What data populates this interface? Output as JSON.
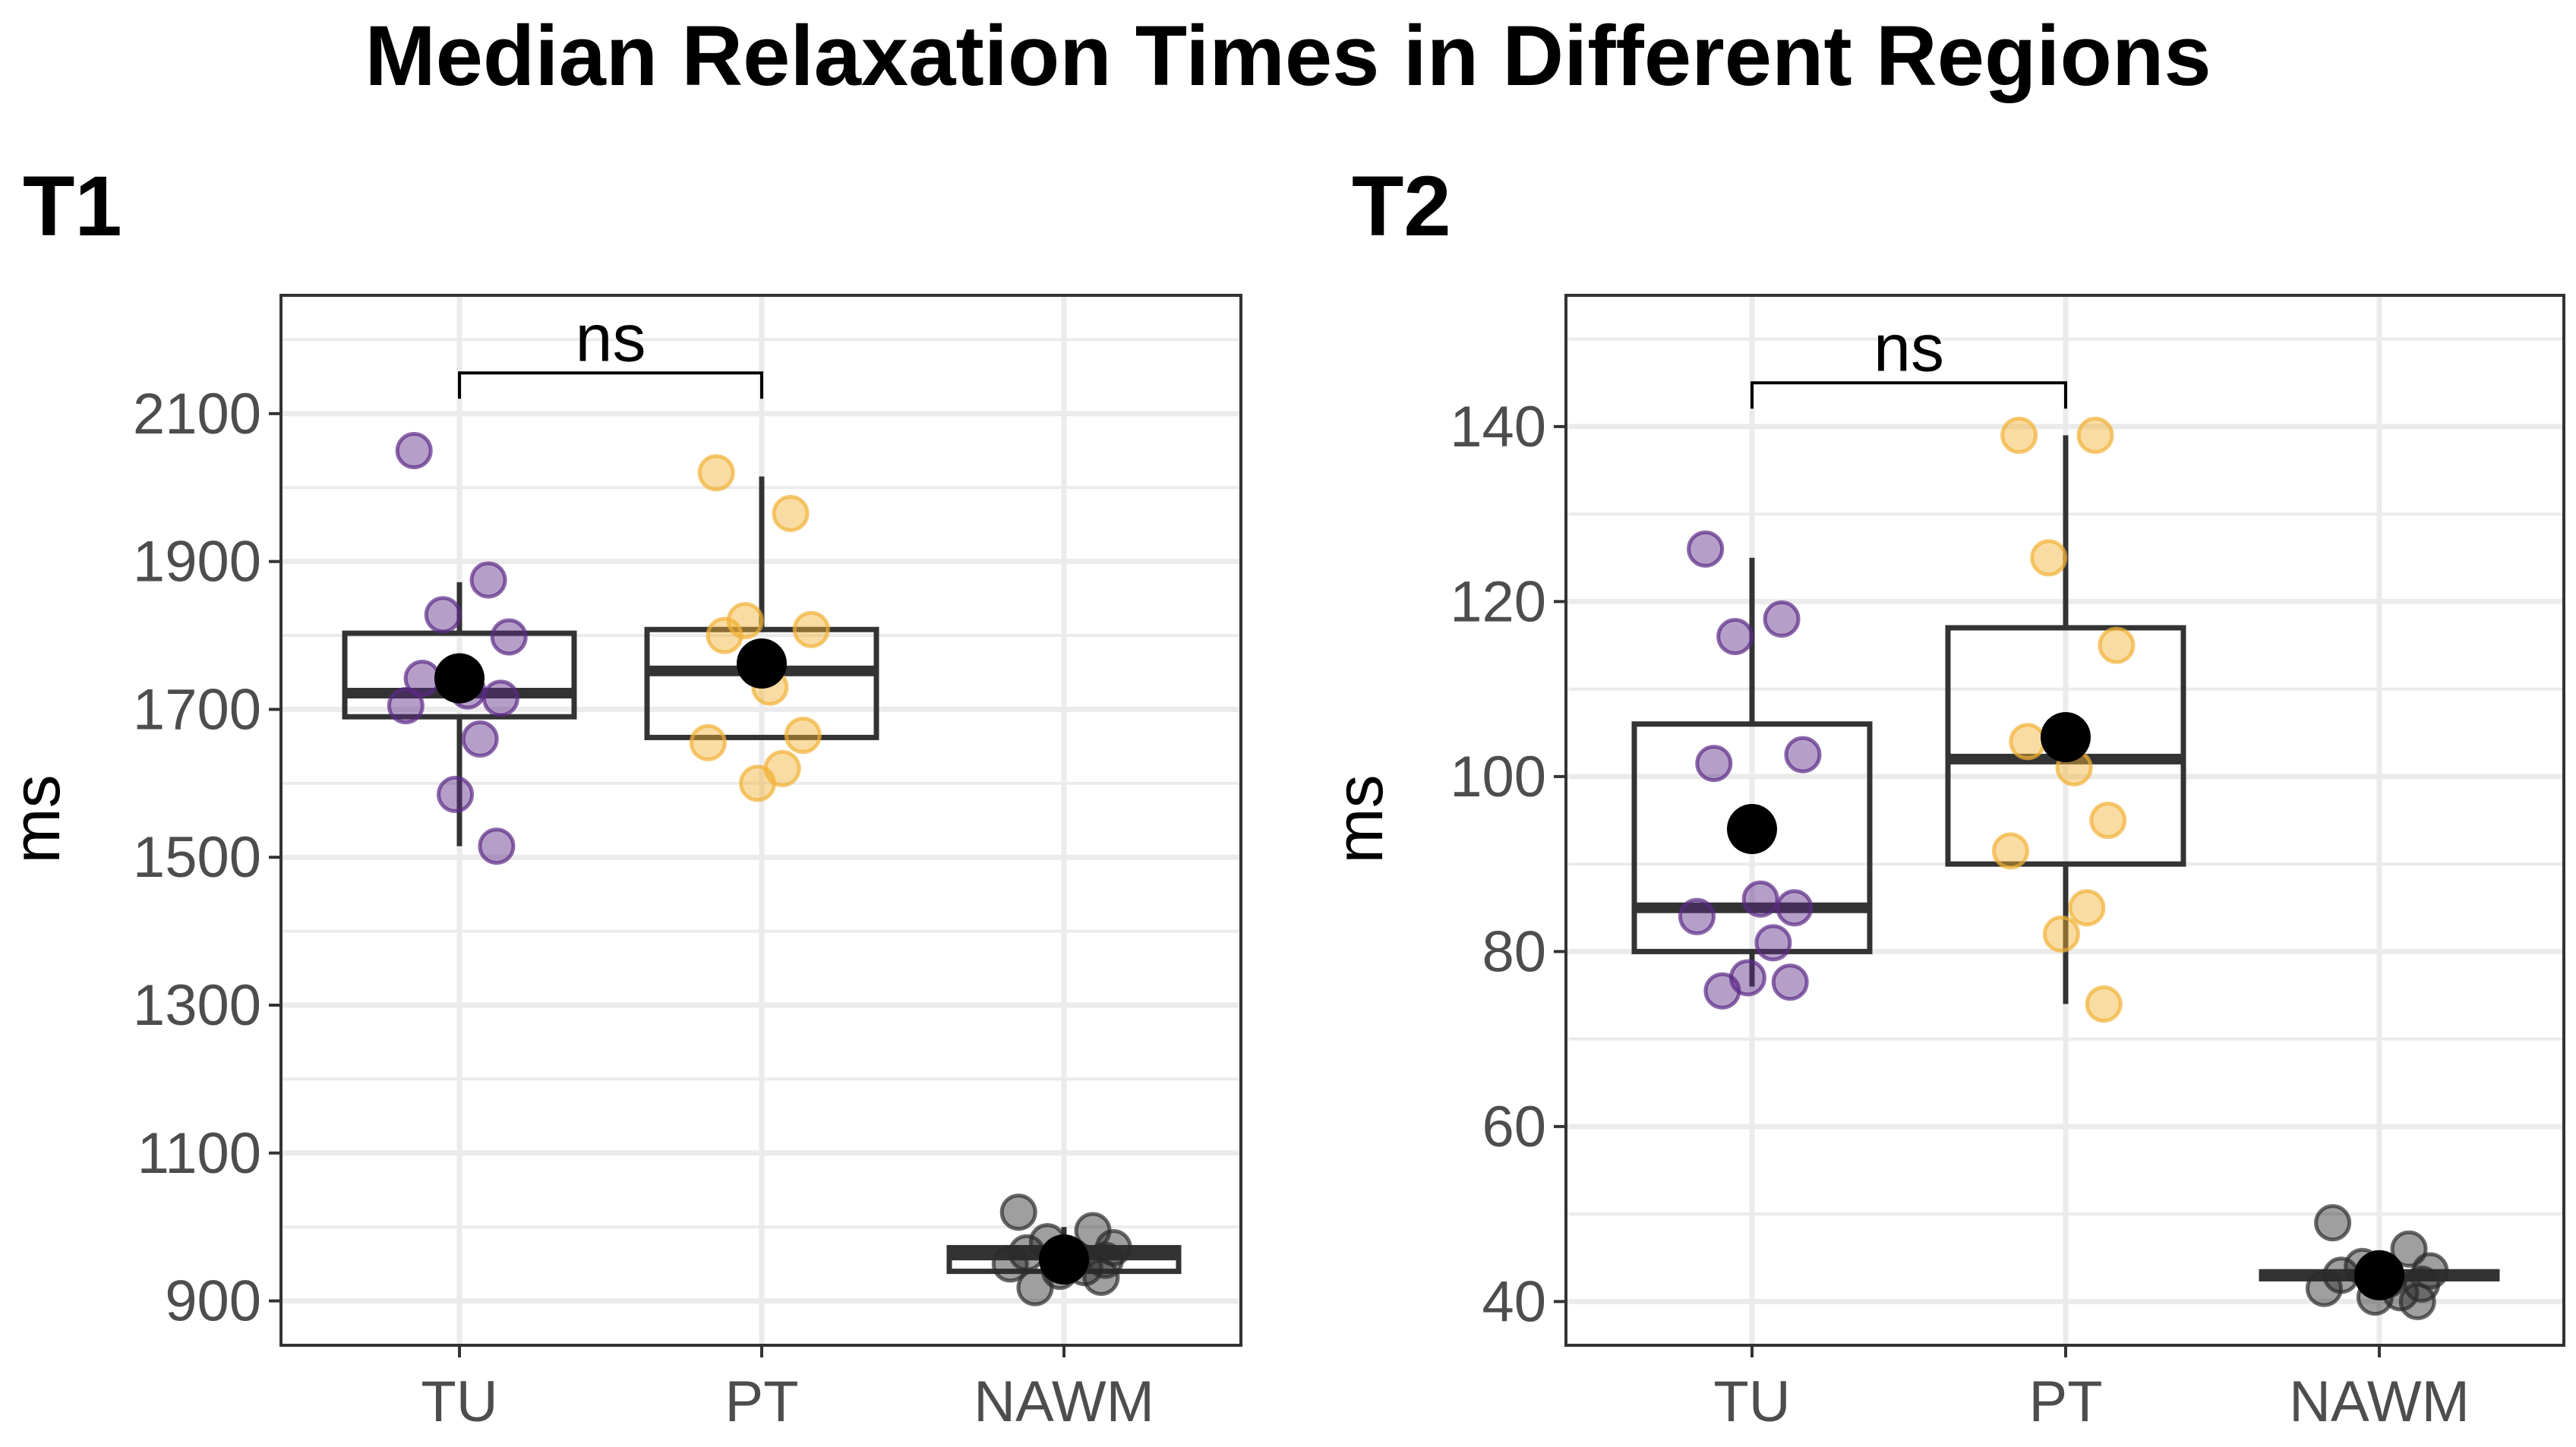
{
  "figure_title": "Median Relaxation Times in Different Regions",
  "colors": {
    "TU": "#5b2a86",
    "PT": "#f2b134",
    "NAWM": "#2b2b2b",
    "mean": "#000000",
    "grid": "#ebebeb",
    "box": "#333333"
  },
  "chart_data": [
    {
      "type": "boxplot",
      "panel_title": "T1",
      "ylabel": "ms",
      "xlabel": "",
      "categories": [
        "TU",
        "PT",
        "NAWM"
      ],
      "ylim": [
        840,
        2260
      ],
      "yticks": [
        900,
        1100,
        1300,
        1500,
        1700,
        1900,
        2100
      ],
      "grid": true,
      "boxes": [
        {
          "category": "TU",
          "lower_whisker": 1515,
          "q1": 1690,
          "median": 1722,
          "q3": 1803,
          "upper_whisker": 1872,
          "mean": 1742
        },
        {
          "category": "PT",
          "lower_whisker": 1662,
          "q1": 1662,
          "median": 1752,
          "q3": 1808,
          "upper_whisker": 2015,
          "mean": 1762
        },
        {
          "category": "NAWM",
          "lower_whisker": 940,
          "q1": 940,
          "median": 962,
          "q3": 972,
          "upper_whisker": 1000,
          "mean": 956
        }
      ],
      "points": {
        "TU": [
          2050,
          1875,
          1828,
          1798,
          1742,
          1725,
          1715,
          1705,
          1660,
          1585,
          1515
        ],
        "PT": [
          2020,
          1965,
          1820,
          1808,
          1800,
          1730,
          1665,
          1655,
          1620,
          1600
        ],
        "NAWM": [
          1020,
          995,
          980,
          972,
          965,
          960,
          955,
          950,
          945,
          940,
          932,
          918
        ]
      },
      "comparison": {
        "from": "TU",
        "to": "PT",
        "label": "ns",
        "y": 2155
      }
    },
    {
      "type": "boxplot",
      "panel_title": "T2",
      "ylabel": "ms",
      "xlabel": "",
      "categories": [
        "TU",
        "PT",
        "NAWM"
      ],
      "ylim": [
        35,
        155
      ],
      "yticks": [
        40,
        60,
        80,
        100,
        120,
        140
      ],
      "grid": true,
      "boxes": [
        {
          "category": "TU",
          "lower_whisker": 76,
          "q1": 80,
          "median": 85,
          "q3": 106,
          "upper_whisker": 125,
          "mean": 94
        },
        {
          "category": "PT",
          "lower_whisker": 74,
          "q1": 90,
          "median": 102,
          "q3": 117,
          "upper_whisker": 139,
          "mean": 104.5
        },
        {
          "category": "NAWM",
          "lower_whisker": 42,
          "q1": 42.6,
          "median": 43,
          "q3": 43.4,
          "upper_whisker": 45,
          "mean": 43
        }
      ],
      "points": {
        "TU": [
          126,
          118,
          116,
          102.5,
          101.5,
          86,
          85,
          84,
          81,
          77,
          76.5,
          75.5
        ],
        "PT": [
          139,
          139,
          125,
          115,
          104,
          101,
          95,
          91.5,
          85,
          82,
          74
        ],
        "NAWM": [
          49,
          46,
          44,
          43.5,
          43,
          42.5,
          42,
          41.5,
          41,
          40.5,
          40
        ]
      },
      "comparison": {
        "from": "TU",
        "to": "PT",
        "label": "ns",
        "y": 145
      }
    }
  ]
}
